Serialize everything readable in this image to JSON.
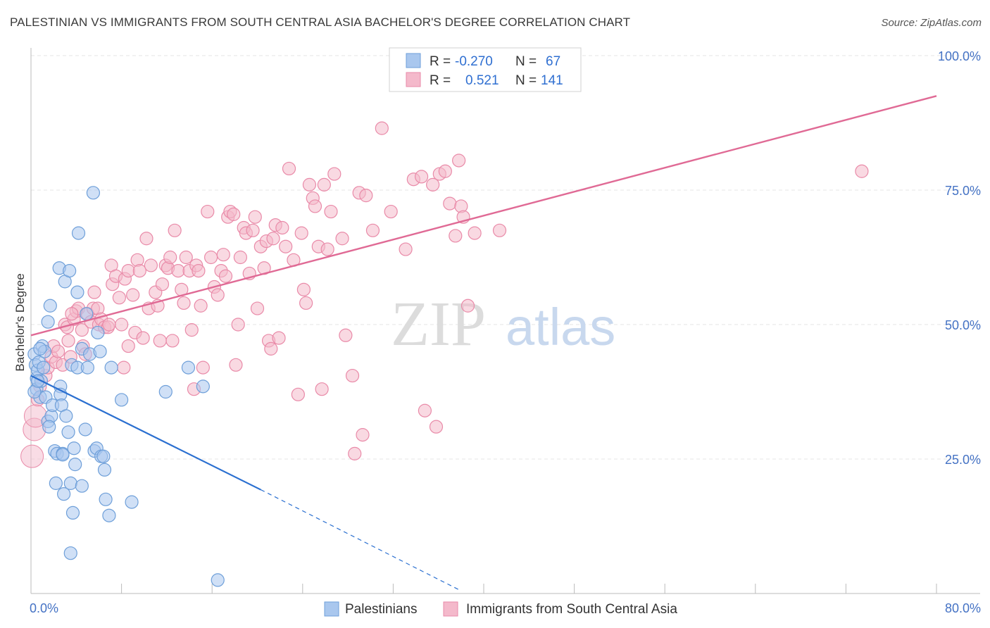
{
  "title": "PALESTINIAN VS IMMIGRANTS FROM SOUTH CENTRAL ASIA BACHELOR'S DEGREE CORRELATION CHART",
  "source": "Source: ZipAtlas.com",
  "watermark": {
    "zip": "ZIP",
    "atlas": "atlas"
  },
  "colors": {
    "blue_fill": "#a9c7ee",
    "blue_stroke": "#6e9fd9",
    "blue_line": "#2a6fd0",
    "pink_fill": "#f4b9cb",
    "pink_stroke": "#e98aa8",
    "pink_line": "#e06a95",
    "grid": "#e4e4e4",
    "tick_label": "#4472c4"
  },
  "chart_data": {
    "type": "scatter",
    "title": "PALESTINIAN VS IMMIGRANTS FROM SOUTH CENTRAL ASIA BACHELOR'S DEGREE CORRELATION CHART",
    "xlabel": "",
    "ylabel": "Bachelor's Degree",
    "xlim": [
      0,
      80
    ],
    "ylim": [
      0,
      103
    ],
    "x_tick_labels": [
      "0.0%",
      "80.0%"
    ],
    "y_ticks": [
      25,
      50,
      75,
      100
    ],
    "y_tick_labels": [
      "25.0%",
      "50.0%",
      "75.0%",
      "100.0%"
    ],
    "legend": [
      {
        "r_label": "R =",
        "r_value": "-0.270",
        "n_label": "N =",
        "n_value": "67"
      },
      {
        "r_label": "R =",
        "r_value": "0.521",
        "n_label": "N =",
        "n_value": "141"
      }
    ],
    "series": [
      {
        "name": "Palestinians",
        "trend": {
          "x0": 0,
          "y0": 40.5,
          "x1": 20.3,
          "y1": 19.3,
          "dash_x1": 38,
          "dash_y1": 0.5
        },
        "points": [
          [
            0.3,
            44.5
          ],
          [
            0.4,
            42.5
          ],
          [
            0.5,
            40
          ],
          [
            0.5,
            38
          ],
          [
            0.8,
            36.5
          ],
          [
            0.6,
            41.5
          ],
          [
            0.7,
            43
          ],
          [
            1,
            46
          ],
          [
            0.9,
            39.5
          ],
          [
            1.2,
            45
          ],
          [
            1.5,
            50.5
          ],
          [
            1.7,
            53.5
          ],
          [
            1.3,
            36.5
          ],
          [
            1.5,
            32
          ],
          [
            1.8,
            33
          ],
          [
            1.9,
            35
          ],
          [
            2.1,
            26.5
          ],
          [
            2.2,
            20.5
          ],
          [
            2.3,
            26
          ],
          [
            2.5,
            60.5
          ],
          [
            2.6,
            38.5
          ],
          [
            2.6,
            37
          ],
          [
            2.7,
            35
          ],
          [
            2.8,
            26
          ],
          [
            2.9,
            18.5
          ],
          [
            3.0,
            58
          ],
          [
            3.1,
            33
          ],
          [
            3.3,
            30
          ],
          [
            3.4,
            60
          ],
          [
            3.5,
            20.5
          ],
          [
            3.6,
            42.5
          ],
          [
            3.7,
            15
          ],
          [
            3.8,
            27
          ],
          [
            3.9,
            24
          ],
          [
            4.1,
            42
          ],
          [
            4.1,
            56
          ],
          [
            4.2,
            67
          ],
          [
            4.5,
            20
          ],
          [
            4.5,
            45.5
          ],
          [
            4.8,
            30.5
          ],
          [
            4.9,
            52
          ],
          [
            5.0,
            42
          ],
          [
            5.2,
            44.5
          ],
          [
            5.5,
            74.5
          ],
          [
            5.6,
            26.5
          ],
          [
            5.8,
            27
          ],
          [
            5.9,
            48.5
          ],
          [
            6.1,
            45
          ],
          [
            6.2,
            25.5
          ],
          [
            6.4,
            25.5
          ],
          [
            6.5,
            23
          ],
          [
            6.6,
            17.5
          ],
          [
            6.9,
            14.5
          ],
          [
            7.1,
            42
          ],
          [
            8.0,
            36
          ],
          [
            8.9,
            17
          ],
          [
            11.9,
            37.5
          ],
          [
            13.9,
            42
          ],
          [
            15.2,
            38.5
          ],
          [
            16.5,
            2.5
          ],
          [
            0.3,
            37.5
          ],
          [
            0.6,
            39.5
          ],
          [
            0.8,
            45.5
          ],
          [
            1.6,
            31
          ],
          [
            3.5,
            7.5
          ],
          [
            2.8,
            25.8
          ],
          [
            1.1,
            42
          ]
        ],
        "big_points": []
      },
      {
        "name": "Immigrants from South Central Asia",
        "trend": {
          "x0": 0,
          "y0": 48,
          "x1": 80,
          "y1": 92.5
        },
        "points": [
          [
            0.6,
            36
          ],
          [
            0.8,
            38.5
          ],
          [
            1.3,
            40.5
          ],
          [
            1.5,
            42
          ],
          [
            1.8,
            44
          ],
          [
            2.0,
            46
          ],
          [
            2.2,
            43
          ],
          [
            2.4,
            45
          ],
          [
            2.8,
            42.5
          ],
          [
            3.0,
            50
          ],
          [
            3.2,
            49.5
          ],
          [
            3.3,
            47
          ],
          [
            3.5,
            44
          ],
          [
            3.8,
            51
          ],
          [
            4.0,
            52.5
          ],
          [
            4.2,
            53
          ],
          [
            4.5,
            49
          ],
          [
            4.6,
            46
          ],
          [
            4.8,
            44.5
          ],
          [
            5.0,
            52
          ],
          [
            5.3,
            50.5
          ],
          [
            5.5,
            53
          ],
          [
            5.6,
            56
          ],
          [
            5.9,
            53
          ],
          [
            6.0,
            50
          ],
          [
            6.2,
            51
          ],
          [
            6.5,
            49.5
          ],
          [
            6.8,
            49.5
          ],
          [
            6.9,
            50
          ],
          [
            7.1,
            61
          ],
          [
            7.2,
            57.5
          ],
          [
            7.5,
            59
          ],
          [
            7.8,
            55
          ],
          [
            8.0,
            50
          ],
          [
            8.3,
            58.5
          ],
          [
            8.6,
            60
          ],
          [
            9.0,
            55.5
          ],
          [
            9.2,
            48.5
          ],
          [
            9.4,
            62
          ],
          [
            9.6,
            60
          ],
          [
            9.9,
            47.5
          ],
          [
            10.2,
            66
          ],
          [
            10.4,
            53
          ],
          [
            10.6,
            61
          ],
          [
            11.0,
            56
          ],
          [
            11.2,
            53.5
          ],
          [
            11.4,
            47
          ],
          [
            11.6,
            57.5
          ],
          [
            11.9,
            61
          ],
          [
            12.1,
            60.5
          ],
          [
            12.3,
            62.5
          ],
          [
            12.5,
            47
          ],
          [
            12.7,
            67.5
          ],
          [
            13.0,
            60
          ],
          [
            13.3,
            56.5
          ],
          [
            13.5,
            54
          ],
          [
            13.7,
            62.5
          ],
          [
            14.0,
            60
          ],
          [
            14.2,
            49
          ],
          [
            14.4,
            38
          ],
          [
            14.6,
            61
          ],
          [
            14.8,
            60
          ],
          [
            15.0,
            53.5
          ],
          [
            15.2,
            42
          ],
          [
            15.6,
            71
          ],
          [
            15.9,
            62.5
          ],
          [
            16.2,
            57
          ],
          [
            16.5,
            55.5
          ],
          [
            16.8,
            60
          ],
          [
            17.0,
            63
          ],
          [
            17.2,
            59
          ],
          [
            17.4,
            70
          ],
          [
            17.6,
            71
          ],
          [
            17.9,
            70.5
          ],
          [
            18.1,
            42.5
          ],
          [
            18.3,
            50
          ],
          [
            18.5,
            62.5
          ],
          [
            18.8,
            68
          ],
          [
            19.0,
            67
          ],
          [
            19.3,
            59.5
          ],
          [
            19.6,
            67.5
          ],
          [
            19.8,
            70
          ],
          [
            20.0,
            53
          ],
          [
            20.3,
            64.5
          ],
          [
            20.6,
            60.5
          ],
          [
            20.8,
            65.5
          ],
          [
            21.0,
            47
          ],
          [
            21.2,
            45.5
          ],
          [
            21.4,
            66
          ],
          [
            21.6,
            68.5
          ],
          [
            21.9,
            47.5
          ],
          [
            22.2,
            68
          ],
          [
            22.5,
            64.5
          ],
          [
            22.8,
            79
          ],
          [
            23.2,
            62
          ],
          [
            23.6,
            37
          ],
          [
            23.9,
            67
          ],
          [
            24.1,
            56.5
          ],
          [
            24.3,
            54
          ],
          [
            24.6,
            76
          ],
          [
            24.9,
            73.5
          ],
          [
            25.1,
            72
          ],
          [
            25.4,
            64.5
          ],
          [
            25.7,
            38
          ],
          [
            25.9,
            76
          ],
          [
            26.2,
            64
          ],
          [
            26.5,
            71
          ],
          [
            26.8,
            78
          ],
          [
            27.5,
            66
          ],
          [
            27.8,
            48
          ],
          [
            28.4,
            40.5
          ],
          [
            28.6,
            26
          ],
          [
            29,
            74.5
          ],
          [
            29.3,
            29.5
          ],
          [
            29.6,
            74
          ],
          [
            30.2,
            67.5
          ],
          [
            31,
            86.5
          ],
          [
            31.8,
            71
          ],
          [
            33.1,
            64
          ],
          [
            33.8,
            77
          ],
          [
            34.5,
            77.5
          ],
          [
            34.8,
            34
          ],
          [
            35.5,
            76
          ],
          [
            35.8,
            31
          ],
          [
            36.1,
            78
          ],
          [
            36.6,
            78.5
          ],
          [
            37,
            72.5
          ],
          [
            37.5,
            66.5
          ],
          [
            37.8,
            80.5
          ],
          [
            38,
            72
          ],
          [
            38.2,
            70
          ],
          [
            38.6,
            53.5
          ],
          [
            39.2,
            67
          ],
          [
            41.4,
            67.5
          ],
          [
            73.4,
            78.5
          ],
          [
            8.2,
            42
          ],
          [
            8.6,
            46
          ],
          [
            3.6,
            52
          ]
        ],
        "big_points": [
          [
            0.3,
            30.5
          ],
          [
            0.1,
            25.5
          ],
          [
            0.4,
            33
          ]
        ]
      }
    ]
  },
  "bottom_legend": [
    "Palestinians",
    "Immigrants from South Central Asia"
  ]
}
